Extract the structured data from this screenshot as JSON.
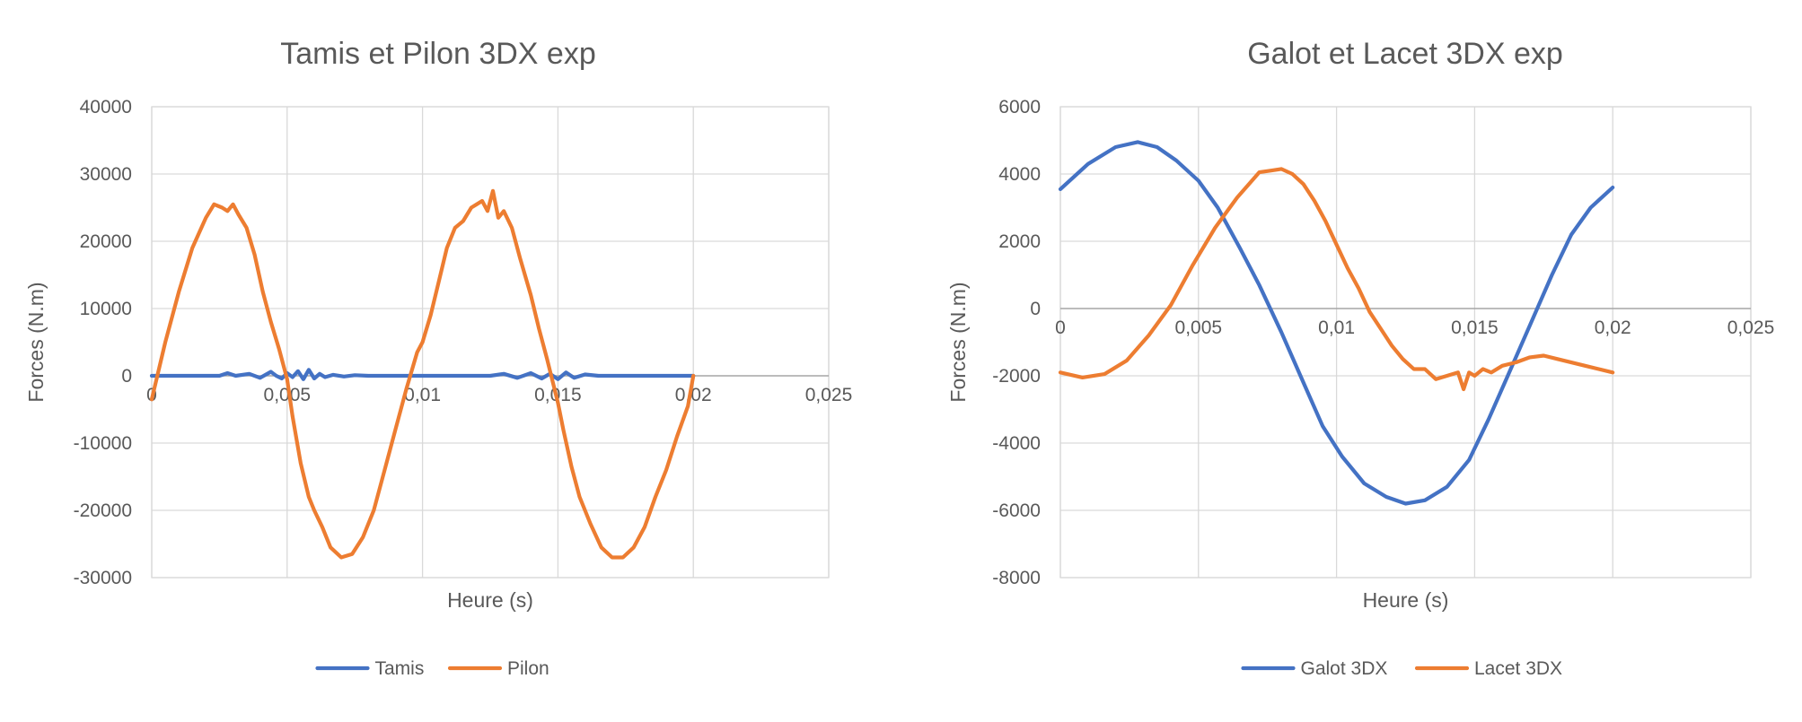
{
  "chart_data": [
    {
      "type": "line",
      "title": "Tamis et Pilon 3DX exp",
      "xlabel": "Heure (s)",
      "ylabel": "Forces (N.m)",
      "xlim": [
        0,
        0.025
      ],
      "ylim": [
        -30000,
        40000
      ],
      "x_ticks": [
        "0",
        "0,005",
        "0,01",
        "0,015",
        "0,02",
        "0,025"
      ],
      "x_tick_values": [
        0,
        0.005,
        0.01,
        0.015,
        0.02,
        0.025
      ],
      "y_ticks": [
        "40000",
        "30000",
        "20000",
        "10000",
        "0",
        "-10000",
        "-20000",
        "-30000"
      ],
      "y_tick_values": [
        40000,
        30000,
        20000,
        10000,
        0,
        -10000,
        -20000,
        -30000
      ],
      "grid": true,
      "legend_position": "bottom",
      "series": [
        {
          "name": "Tamis",
          "color": "#4472c4",
          "x": [
            0,
            0.0025,
            0.0028,
            0.0031,
            0.0036,
            0.004,
            0.0044,
            0.0046,
            0.0048,
            0.005,
            0.0052,
            0.0054,
            0.0056,
            0.0058,
            0.006,
            0.0062,
            0.0064,
            0.0067,
            0.0071,
            0.0075,
            0.008,
            0.01,
            0.0125,
            0.013,
            0.0135,
            0.014,
            0.0144,
            0.0147,
            0.015,
            0.0153,
            0.0156,
            0.016,
            0.0165,
            0.02
          ],
          "y": [
            0,
            0,
            400,
            0,
            300,
            -300,
            600,
            0,
            -400,
            400,
            -200,
            700,
            -500,
            900,
            -400,
            300,
            -200,
            150,
            -100,
            100,
            0,
            0,
            0,
            300,
            -300,
            400,
            -400,
            300,
            -500,
            500,
            -300,
            200,
            0,
            0
          ]
        },
        {
          "name": "Pilon",
          "color": "#ed7d31",
          "x": [
            0,
            0.0005,
            0.001,
            0.0015,
            0.002,
            0.0023,
            0.0026,
            0.0028,
            0.003,
            0.0032,
            0.0035,
            0.0038,
            0.0041,
            0.0044,
            0.0047,
            0.005,
            0.0052,
            0.0055,
            0.0058,
            0.006,
            0.0063,
            0.0066,
            0.007,
            0.0074,
            0.0078,
            0.0082,
            0.0086,
            0.009,
            0.0094,
            0.0098,
            0.01,
            0.0103,
            0.0106,
            0.0109,
            0.0112,
            0.0115,
            0.0118,
            0.012,
            0.0122,
            0.0124,
            0.0126,
            0.0128,
            0.013,
            0.0133,
            0.0136,
            0.014,
            0.0143,
            0.0146,
            0.015,
            0.0152,
            0.0155,
            0.0158,
            0.0162,
            0.0166,
            0.017,
            0.0174,
            0.0178,
            0.0182,
            0.0186,
            0.019,
            0.0194,
            0.0198,
            0.02
          ],
          "y": [
            -3500,
            5000,
            12500,
            19000,
            23500,
            25500,
            25000,
            24500,
            25500,
            24000,
            22000,
            18000,
            12500,
            8000,
            4000,
            -500,
            -6000,
            -13000,
            -18000,
            -20000,
            -22500,
            -25500,
            -27000,
            -26500,
            -24000,
            -20000,
            -14000,
            -8000,
            -2000,
            3500,
            5000,
            9000,
            14000,
            19000,
            22000,
            23000,
            25000,
            25500,
            26000,
            24500,
            27500,
            23500,
            24500,
            22000,
            17500,
            12000,
            7000,
            2500,
            -4000,
            -8000,
            -13500,
            -18000,
            -22000,
            -25500,
            -27000,
            -27000,
            -25500,
            -22500,
            -18000,
            -14000,
            -9000,
            -4500,
            0
          ]
        }
      ]
    },
    {
      "type": "line",
      "title": "Galot et Lacet 3DX exp",
      "xlabel": "Heure (s)",
      "ylabel": "Forces (N.m)",
      "xlim": [
        0,
        0.025
      ],
      "ylim": [
        -8000,
        6000
      ],
      "x_ticks": [
        "0",
        "0,005",
        "0,01",
        "0,015",
        "0,02",
        "0,025"
      ],
      "x_tick_values": [
        0,
        0.005,
        0.01,
        0.015,
        0.02,
        0.025
      ],
      "y_ticks": [
        "6000",
        "4000",
        "2000",
        "0",
        "-2000",
        "-4000",
        "-6000",
        "-8000"
      ],
      "y_tick_values": [
        6000,
        4000,
        2000,
        0,
        -2000,
        -4000,
        -6000,
        -8000
      ],
      "grid": true,
      "legend_position": "bottom",
      "series": [
        {
          "name": "Galot 3DX",
          "color": "#4472c4",
          "x": [
            0,
            0.001,
            0.002,
            0.0028,
            0.0035,
            0.0042,
            0.005,
            0.0057,
            0.0065,
            0.0072,
            0.008,
            0.0088,
            0.0095,
            0.0102,
            0.011,
            0.0118,
            0.0125,
            0.0132,
            0.014,
            0.0148,
            0.0155,
            0.0162,
            0.017,
            0.0178,
            0.0185,
            0.0192,
            0.02
          ],
          "y": [
            3550,
            4300,
            4800,
            4950,
            4800,
            4400,
            3800,
            3000,
            1800,
            700,
            -700,
            -2200,
            -3500,
            -4400,
            -5200,
            -5600,
            -5800,
            -5700,
            -5300,
            -4500,
            -3300,
            -2000,
            -500,
            1000,
            2200,
            3000,
            3600
          ]
        },
        {
          "name": "Lacet 3DX",
          "color": "#ed7d31",
          "x": [
            0,
            0.0008,
            0.0016,
            0.0024,
            0.0032,
            0.004,
            0.0048,
            0.0056,
            0.0064,
            0.0072,
            0.0076,
            0.008,
            0.0084,
            0.0088,
            0.0092,
            0.0096,
            0.01,
            0.0104,
            0.0108,
            0.0112,
            0.0116,
            0.012,
            0.0124,
            0.0128,
            0.0132,
            0.0136,
            0.014,
            0.0144,
            0.0146,
            0.0148,
            0.015,
            0.0153,
            0.0156,
            0.016,
            0.0165,
            0.017,
            0.0175,
            0.018,
            0.019,
            0.02
          ],
          "y": [
            -1900,
            -2050,
            -1950,
            -1550,
            -800,
            100,
            1300,
            2400,
            3300,
            4050,
            4100,
            4150,
            4000,
            3700,
            3200,
            2600,
            1900,
            1200,
            600,
            -100,
            -600,
            -1100,
            -1500,
            -1800,
            -1800,
            -2100,
            -2000,
            -1900,
            -2400,
            -1900,
            -2000,
            -1800,
            -1900,
            -1700,
            -1600,
            -1450,
            -1400,
            -1500,
            -1700,
            -1900
          ]
        }
      ]
    }
  ]
}
